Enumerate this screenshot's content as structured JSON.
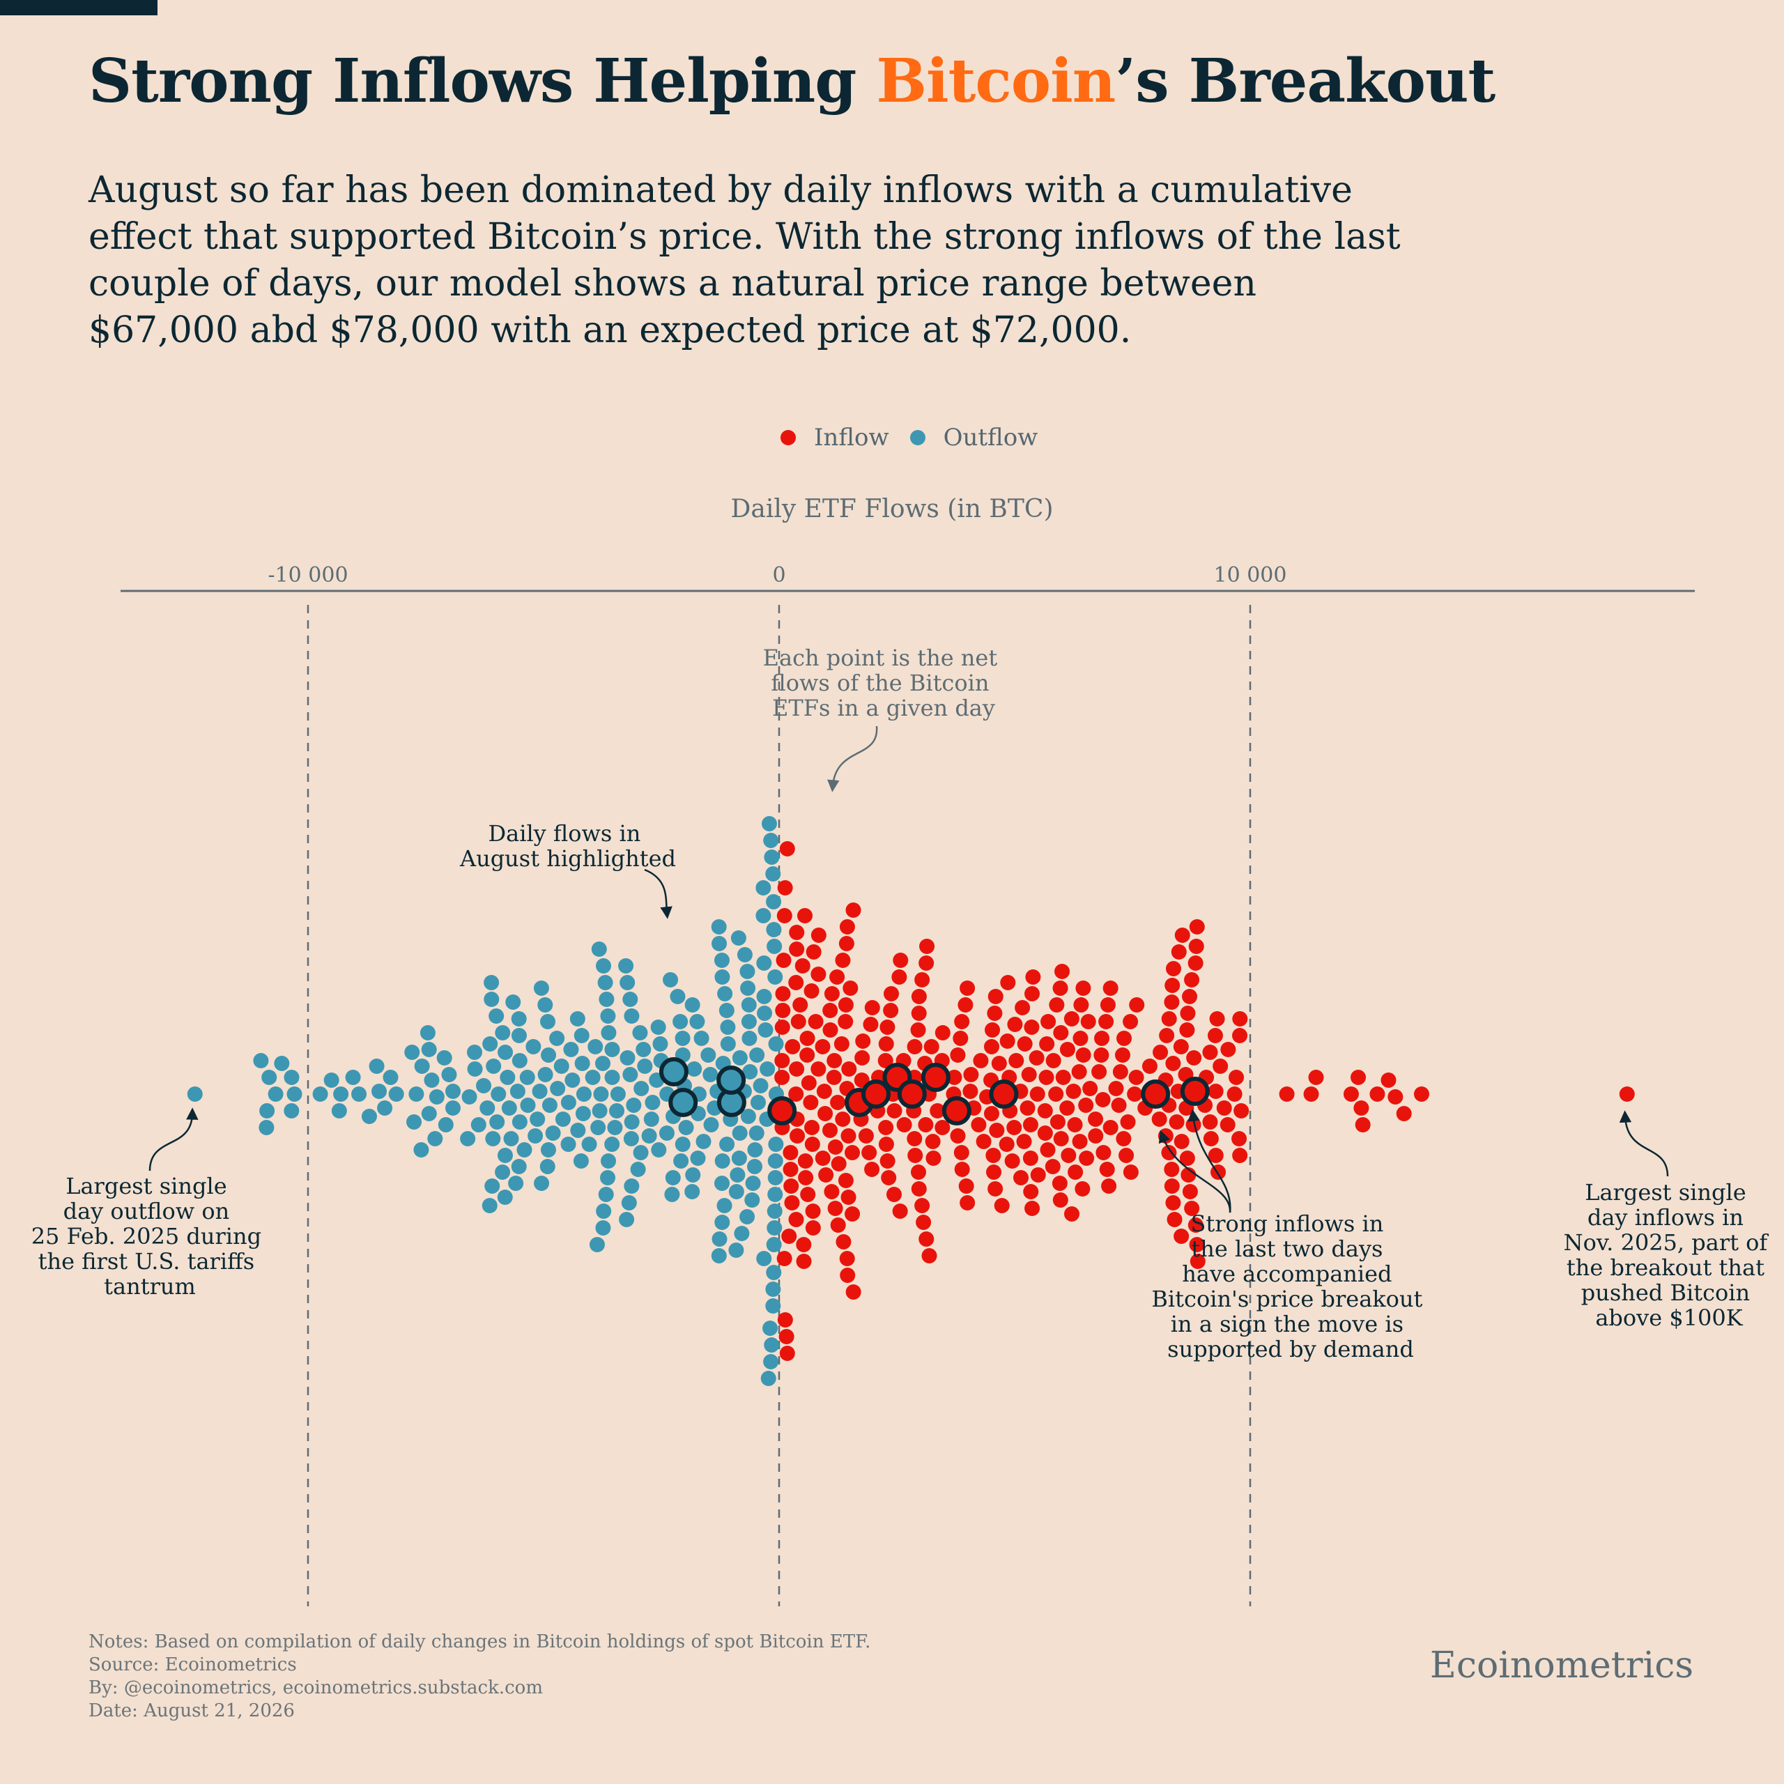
{
  "title": {
    "prefix": "Strong Inflows Helping ",
    "accent": "Bitcoin",
    "suffix": "’s Breakout",
    "accent_color": "#ff6a12"
  },
  "subtitle": "August so far has been dominated by daily inflows with a cumulative effect that supported Bitcoin’s price. With the strong inflows of the last couple of days, our model shows a natural price range between $67,000 abd $78,000 with an expected price at $72,000.",
  "legend": {
    "inflow": {
      "label": "Inflow",
      "color": "#e8140c"
    },
    "outflow": {
      "label": "Outflow",
      "color": "#3d97b2"
    }
  },
  "axis": {
    "title": "Daily ETF Flows (in BTC)",
    "ticks": [
      -10000,
      0,
      10000
    ],
    "tick_labels": [
      "-10 000",
      "0",
      "10 000"
    ],
    "range": [
      -14000,
      19400
    ]
  },
  "annotations": {
    "each_point": [
      "Each point is the net",
      "flows of the Bitcoin",
      "ETFs in a given day"
    ],
    "august": [
      "Daily flows in",
      "August highlighted"
    ],
    "largest_outflow": [
      "Largest single",
      "day outflow on",
      "25 Feb. 2025 during",
      "the first U.S. tariffs",
      "tantrum"
    ],
    "strong_inflows": [
      "Strong inflows in",
      "the last two days",
      "have accompanied",
      "Bitcoin's price breakout",
      "in a sign the move is",
      "supported by demand"
    ],
    "largest_inflow": [
      "Largest single",
      "day inflows in",
      "Nov. 2025, part of",
      "the breakout that",
      "pushed Bitcoin",
      "above $100K"
    ]
  },
  "chart_data": {
    "type": "scatter",
    "title": "Strong Inflows Helping Bitcoin’s Breakout",
    "xlabel": "Daily ETF Flows (in BTC)",
    "ylabel": "",
    "xlim": [
      -14000,
      19400
    ],
    "series": [
      {
        "name": "Inflow",
        "color": "#e8140c",
        "count": 350
      },
      {
        "name": "Outflow",
        "color": "#3d97b2",
        "count": 260
      }
    ],
    "extremes": {
      "largest_outflow": -12400,
      "largest_inflow": 18000
    },
    "highlighted_august": [
      -2100,
      -2200,
      -1000,
      -900,
      100,
      1600,
      2100,
      2600,
      2950,
      3300,
      3800,
      4700,
      8000,
      8800
    ],
    "grid": "dashed vertical at ticks"
  },
  "notes": [
    "Notes: Based on compilation of daily changes in Bitcoin holdings of spot Bitcoin ETF.",
    "Source: Ecoinometrics",
    "By: @ecoinometrics, ecoinometrics.substack.com",
    "Date: August 21, 2026"
  ],
  "brand": "Ecoinometrics"
}
